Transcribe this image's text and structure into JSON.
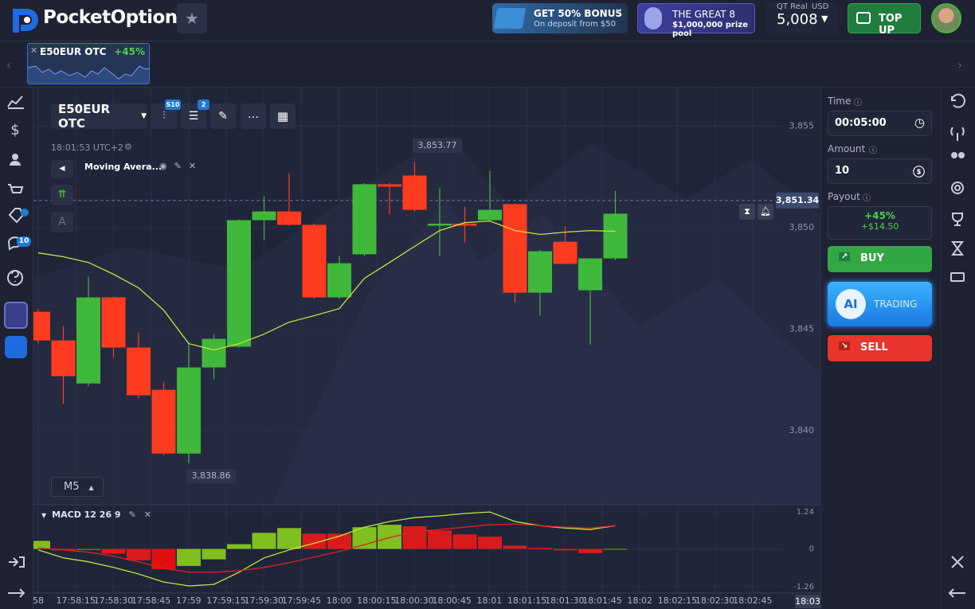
{
  "header": {
    "logo": "PocketOption",
    "bonus": {
      "title": "GET 50% BONUS",
      "subtitle": "On deposit from $50"
    },
    "tournament": {
      "title": "THE GREAT 8",
      "subtitle": "$1,000,000 prize pool"
    },
    "account": {
      "type": "QT Real",
      "currency": "USD",
      "balance": "5,008"
    },
    "top_up": "TOP UP"
  },
  "asset_tab": {
    "name": "E50EUR OTC",
    "payout": "+45%"
  },
  "sidebar": {
    "chat_badge": "10"
  },
  "toolbar": {
    "asset": "E50EUR OTC",
    "timeframe_badge": "S10",
    "indicators_badge": "2"
  },
  "chart": {
    "type": "candlestick",
    "clock": "18:01:53 UTC+2",
    "indicator": "Moving Avera...",
    "drawing_letter": "A",
    "timeframe": "M5",
    "ylim": [
      3836.4,
      3856.9
    ],
    "yticks": [
      {
        "value": 3840,
        "label": "3,840"
      },
      {
        "value": 3845,
        "label": "3,845"
      },
      {
        "value": 3850,
        "label": "3,850"
      },
      {
        "value": 3855,
        "label": "3,855"
      }
    ],
    "up_color": "#3fb83b",
    "down_color": "#ff3c1f",
    "candles": {
      "open": [
        3845.86,
        3844.45,
        3842.33,
        3846.57,
        3844.1,
        3842.02,
        3838.88,
        3843.12,
        3844.14,
        3850.37,
        3850.8,
        3850.14,
        3846.57,
        3848.69,
        3852.14,
        3852.57,
        3850.1,
        3850.2,
        3850.37,
        3851.16,
        3846.8,
        3849.31,
        3846.92,
        3848.49
      ],
      "high": [
        3846.0,
        3845.16,
        3847.59,
        3846.6,
        3844.84,
        3842.41,
        3844.29,
        3844.76,
        3850.4,
        3851.55,
        3852.69,
        3850.2,
        3848.61,
        3852.2,
        3852.2,
        3853.24,
        3851.98,
        3851.04,
        3852.8,
        3851.2,
        3848.9,
        3850.06,
        3848.5,
        3851.82
      ],
      "low": [
        3844.3,
        3841.31,
        3842.2,
        3843.59,
        3841.6,
        3838.8,
        3838.41,
        3842.53,
        3844.1,
        3849.4,
        3850.1,
        3846.5,
        3846.5,
        3848.6,
        3850.65,
        3850.8,
        3848.6,
        3849.27,
        3850.3,
        3846.33,
        3845.67,
        3848.2,
        3844.25,
        3848.4
      ],
      "close": [
        3844.45,
        3842.69,
        3846.57,
        3844.1,
        3841.75,
        3838.88,
        3843.12,
        3844.53,
        3850.37,
        3850.8,
        3850.14,
        3846.57,
        3848.25,
        3852.14,
        3852.02,
        3850.88,
        3850.2,
        3850.1,
        3850.88,
        3846.8,
        3848.84,
        3848.22,
        3848.49,
        3850.69
      ]
    },
    "moving_average": {
      "color": "#c8e33c",
      "values": [
        3848.76,
        3848.57,
        3848.29,
        3847.71,
        3847.04,
        3845.94,
        3844.29,
        3843.98,
        3844.29,
        3844.76,
        3845.35,
        3845.67,
        3846.02,
        3847.51,
        3848.29,
        3849.08,
        3849.86,
        3850.25,
        3850.33,
        3849.86,
        3849.67,
        3849.78,
        3849.86,
        3849.82
      ]
    },
    "high_label": {
      "value": 3853.77,
      "label": "3,853.77"
    },
    "low_label": {
      "value": 3838.86,
      "label": "3,838.86"
    },
    "current_price": {
      "value": 3851.34,
      "label": "3,851.34"
    },
    "macd": {
      "label": "MACD 12 26 9",
      "ylim": [
        -1.48,
        1.43
      ],
      "yticks": [
        1.24,
        0,
        -1.26
      ],
      "histogram": [
        0.27,
        -0.05,
        -0.03,
        -0.16,
        -0.38,
        -0.68,
        -0.57,
        -0.35,
        0.16,
        0.54,
        0.7,
        0.51,
        0.51,
        0.73,
        0.81,
        0.76,
        0.62,
        0.49,
        0.41,
        0.11,
        0.03,
        -0.05,
        -0.14,
        0.01
      ],
      "histogram_colors": [
        "#7fbf1f",
        "#d91b1b",
        "#4f7f1a",
        "#d91b1b",
        "#d91b1b",
        "#e01010",
        "#7fbf1f",
        "#7fbf1f",
        "#7fbf1f",
        "#7fbf1f",
        "#7fbf1f",
        "#d91b1b",
        "#d91b1b",
        "#7fbf1f",
        "#7fbf1f",
        "#d91b1b",
        "#d91b1b",
        "#d91b1b",
        "#d91b1b",
        "#d91b1b",
        "#d91b1b",
        "#d91b1b",
        "#d91b1b",
        "#4f7f1a"
      ],
      "macd_line": {
        "color": "#c8e33c",
        "values": [
          -0.03,
          -0.3,
          -0.43,
          -0.62,
          -0.84,
          -1.11,
          -1.24,
          -1.19,
          -0.78,
          -0.3,
          -0.03,
          0.19,
          0.43,
          0.73,
          0.92,
          1.05,
          1.11,
          1.19,
          1.24,
          0.92,
          0.78,
          0.7,
          0.65,
          0.78
        ]
      },
      "signal_line": {
        "color": "#e02020",
        "values": [
          0.03,
          -0.03,
          -0.11,
          -0.24,
          -0.43,
          -0.65,
          -0.78,
          -0.78,
          -0.73,
          -0.62,
          -0.46,
          -0.27,
          -0.08,
          0.14,
          0.38,
          0.57,
          0.65,
          0.73,
          0.81,
          0.84,
          0.78,
          0.73,
          0.7,
          0.78
        ]
      }
    },
    "time_labels": [
      "58",
      "17:58:15",
      "17:58:30",
      "17:58:45",
      "17:59",
      "17:59:15",
      "17:59:30",
      "17:59:45",
      "18:00",
      "18:00:15",
      "18:00:30",
      "18:00:45",
      "18:01",
      "18:01:15",
      "18:01:30",
      "18:01:45",
      "18:02",
      "18:02:15",
      "18:02:30",
      "18:02:45"
    ],
    "current_time": "18:03"
  },
  "trade_panel": {
    "time": {
      "label": "Time",
      "value": "00:05:00"
    },
    "amount": {
      "label": "Amount",
      "value": "10"
    },
    "payout": {
      "label": "Payout",
      "percent": "+45%",
      "profit": "+$14.50"
    },
    "buy": "BUY",
    "ai": "AI",
    "ai_trading": "TRADING",
    "sell": "SELL"
  }
}
